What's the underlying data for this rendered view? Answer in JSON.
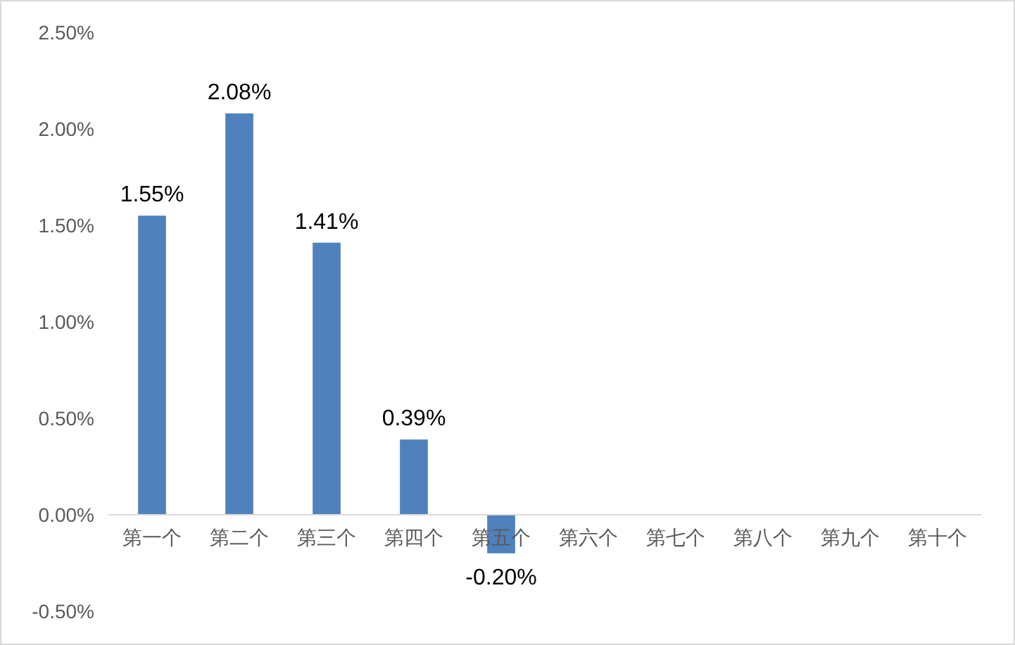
{
  "chart_data": {
    "type": "bar",
    "categories": [
      "第一个",
      "第二个",
      "第三个",
      "第四个",
      "第五个",
      "第六个",
      "第七个",
      "第八个",
      "第九个",
      "第十个"
    ],
    "values": [
      1.55,
      2.08,
      1.41,
      0.39,
      -0.2,
      null,
      null,
      null,
      null,
      null
    ],
    "value_labels": [
      "1.55%",
      "2.08%",
      "1.41%",
      "0.39%",
      "-0.20%",
      null,
      null,
      null,
      null,
      null
    ],
    "color": "#4f81bd",
    "ylim": [
      -0.5,
      2.5
    ],
    "yticks": [
      {
        "value": -0.5,
        "label": "-0.50%"
      },
      {
        "value": 0,
        "label": "0.00%"
      },
      {
        "value": 0.5,
        "label": "0.50%"
      },
      {
        "value": 1,
        "label": "1.00%"
      },
      {
        "value": 1.5,
        "label": "1.50%"
      },
      {
        "value": 2,
        "label": "2.00%"
      },
      {
        "value": 2.5,
        "label": "2.50%"
      }
    ],
    "grid": false
  }
}
